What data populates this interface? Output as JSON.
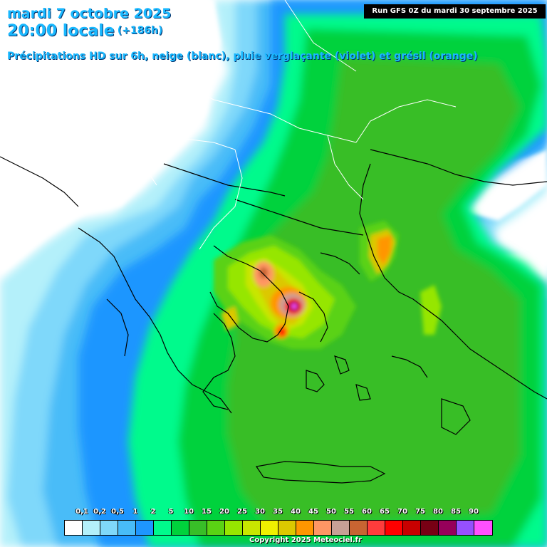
{
  "header": {
    "date_line": "mardi 7 octobre 2025",
    "time_line": "20:00 locale",
    "lead_time": "(+186h)",
    "subtitle": "Précipitations HD sur 6h, neige (blanc), pluie verglaçante (violet) et grésil (orange)",
    "run_info": "Run GFS 0Z du mardi 30 septembre 2025"
  },
  "legend": {
    "labels": [
      "0,1",
      "0,2",
      "0,5",
      "1",
      "2",
      "5",
      "10",
      "15",
      "20",
      "25",
      "30",
      "35",
      "40",
      "45",
      "50",
      "55",
      "60",
      "65",
      "70",
      "75",
      "80",
      "85",
      "90"
    ],
    "colors": [
      "#ffffff",
      "#b4f0fa",
      "#7fd8fa",
      "#48bcf8",
      "#1e96ff",
      "#00fa8c",
      "#00d23c",
      "#38be28",
      "#5ad214",
      "#96e600",
      "#c8e600",
      "#f0f000",
      "#dcc800",
      "#ff9600",
      "#ff9664",
      "#c8a096",
      "#c86432",
      "#ff3c3c",
      "#ff0000",
      "#c80000",
      "#780014",
      "#96005a",
      "#9650ff",
      "#ff50ff"
    ]
  },
  "footer": {
    "copyright": "Copyright 2025 Meteociel.fr"
  }
}
